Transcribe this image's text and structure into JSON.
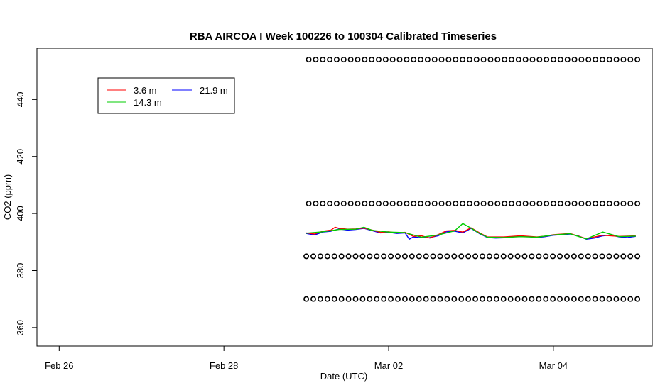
{
  "chart_data": {
    "type": "line",
    "title": "RBA AIRCOA I  Week 100226 to 100304  Calibrated Timeseries",
    "xlabel": "Date (UTC)",
    "ylabel": "CO2 (ppm)",
    "x_ticks": [
      {
        "label": "Feb 26",
        "day": 0
      },
      {
        "label": "Feb 28",
        "day": 2
      },
      {
        "label": "Mar 02",
        "day": 4
      },
      {
        "label": "Mar 04",
        "day": 6
      }
    ],
    "xlim_days": [
      -0.27,
      7.2
    ],
    "y_ticks": [
      360,
      380,
      400,
      420,
      440
    ],
    "ylim": [
      353.5,
      458
    ],
    "grid": false,
    "legend": {
      "position": "top-left",
      "entries": [
        {
          "label": "3.6 m",
          "color": "#ff0000"
        },
        {
          "label": "21.9 m",
          "color": "#0000ff"
        },
        {
          "label": "14.3 m",
          "color": "#00cc00"
        }
      ]
    },
    "series": [
      {
        "name": "21.9 m",
        "color": "#0000ff",
        "x_days": [
          3.0,
          3.1,
          3.2,
          3.3,
          3.4,
          3.5,
          3.6,
          3.7,
          3.8,
          3.9,
          4.0,
          4.1,
          4.2,
          4.25,
          4.3,
          4.4,
          4.5,
          4.6,
          4.7,
          4.8,
          4.9,
          5.0,
          5.1,
          5.2,
          5.3,
          5.4,
          5.5,
          5.6,
          5.7,
          5.8,
          5.9,
          6.0,
          6.1,
          6.2,
          6.3,
          6.4,
          6.5,
          6.6,
          6.7,
          6.8,
          6.9,
          7.0
        ],
        "values": [
          393.0,
          392.5,
          393.5,
          393.8,
          394.6,
          394.2,
          394.4,
          394.8,
          394.0,
          393.2,
          393.4,
          393.0,
          393.2,
          391.0,
          391.8,
          391.5,
          391.6,
          392.2,
          393.6,
          393.8,
          393.2,
          394.8,
          393.0,
          391.6,
          391.4,
          391.5,
          391.8,
          392.0,
          391.9,
          391.6,
          391.9,
          392.4,
          392.6,
          392.8,
          392.2,
          391.0,
          391.4,
          392.2,
          392.5,
          391.8,
          391.6,
          392.0
        ]
      },
      {
        "name": "3.6 m",
        "color": "#ff0000",
        "x_days": [
          3.0,
          3.1,
          3.2,
          3.3,
          3.35,
          3.4,
          3.5,
          3.6,
          3.7,
          3.8,
          3.9,
          4.0,
          4.1,
          4.2,
          4.3,
          4.4,
          4.5,
          4.6,
          4.7,
          4.8,
          4.9,
          5.0,
          5.1,
          5.2,
          5.4,
          5.6,
          5.8,
          5.9,
          6.0,
          6.2,
          6.4,
          6.6,
          6.8,
          7.0
        ],
        "values": [
          393.2,
          392.8,
          393.8,
          394.2,
          395.2,
          394.8,
          394.5,
          394.6,
          394.9,
          394.2,
          393.4,
          393.6,
          393.2,
          393.4,
          392.0,
          392.2,
          391.4,
          392.6,
          393.9,
          394.1,
          393.5,
          395.0,
          393.3,
          391.8,
          391.8,
          392.2,
          391.8,
          392.1,
          392.6,
          393.0,
          391.2,
          392.4,
          392.0,
          392.2
        ]
      },
      {
        "name": "14.3 m",
        "color": "#00cc00",
        "x_days": [
          3.0,
          3.2,
          3.4,
          3.6,
          3.7,
          3.8,
          4.0,
          4.2,
          4.4,
          4.6,
          4.8,
          4.9,
          5.0,
          5.1,
          5.2,
          5.4,
          5.6,
          5.8,
          6.0,
          6.2,
          6.4,
          6.6,
          6.8,
          7.0
        ],
        "values": [
          393.1,
          393.6,
          394.4,
          394.5,
          395.2,
          394.1,
          393.5,
          393.3,
          391.7,
          392.5,
          393.9,
          396.5,
          394.9,
          393.1,
          391.7,
          391.6,
          391.9,
          391.7,
          392.5,
          392.9,
          391.1,
          393.5,
          391.9,
          392.1
        ]
      },
      {
        "name": "",
        "color": "#000000",
        "marker": "circle",
        "x_start_day": 3.03,
        "x_end_day": 7.02,
        "count": 48,
        "values": [
          454
        ]
      },
      {
        "name": "",
        "color": "#000000",
        "marker": "circle",
        "x_start_day": 3.03,
        "x_end_day": 7.02,
        "count": 48,
        "values": [
          403.5
        ]
      },
      {
        "name": "",
        "color": "#000000",
        "marker": "circle",
        "x_start_day": 3.0,
        "x_end_day": 7.02,
        "count": 48,
        "values": [
          385
        ]
      },
      {
        "name": "",
        "color": "#000000",
        "marker": "circle",
        "x_start_day": 3.0,
        "x_end_day": 7.02,
        "count": 48,
        "values": [
          370
        ]
      }
    ]
  }
}
